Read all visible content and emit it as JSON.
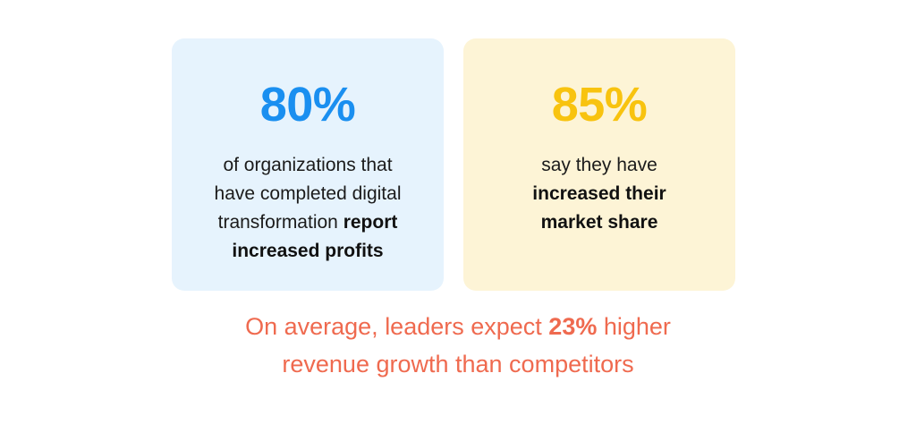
{
  "cards": [
    {
      "stat": "80%",
      "text_lines": [
        "of organizations that",
        "have completed digital",
        "transformation "
      ],
      "bold_inline": "report",
      "bold_line": "increased profits",
      "stat_color": "#1a8ff0",
      "background": "#e6f3fd"
    },
    {
      "stat": "85%",
      "text_line": "say they have",
      "bold_lines": [
        "increased their",
        "market share"
      ],
      "stat_color": "#f8c30f",
      "background": "#fdf4d6"
    }
  ],
  "footer": {
    "part1": "On average, leaders expect ",
    "highlight": "23%",
    "part2": " higher",
    "line2": "revenue growth than competitors",
    "color": "#ef6a4f"
  }
}
